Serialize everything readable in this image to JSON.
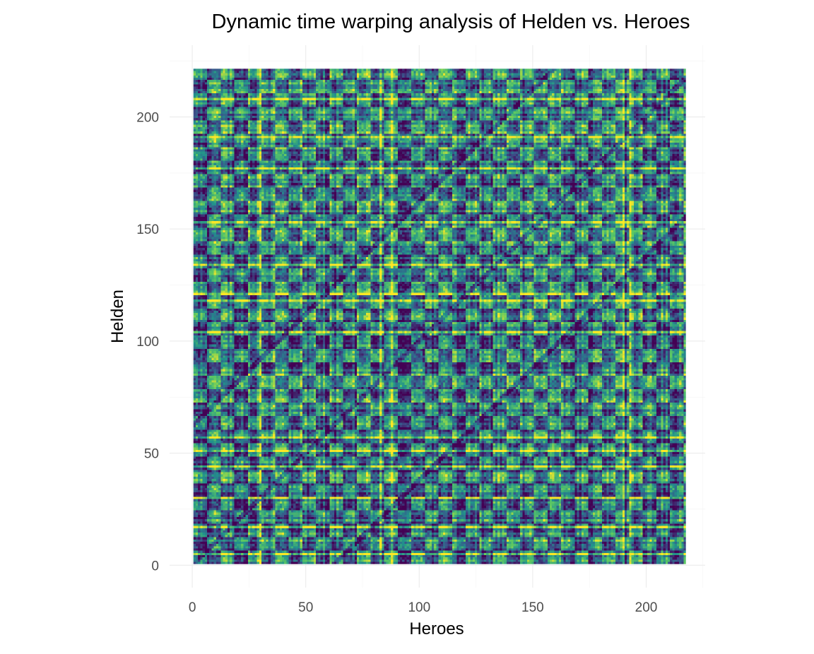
{
  "chart_data": {
    "type": "heatmap",
    "title": "Dynamic time warping analysis of Helden vs. Heroes",
    "xlabel": "Heroes",
    "ylabel": "Helden",
    "x_range": [
      1,
      217
    ],
    "y_range": [
      1,
      221
    ],
    "xlim": [
      -10,
      226
    ],
    "ylim": [
      -10,
      232
    ],
    "x_ticks": [
      0,
      50,
      100,
      150,
      200
    ],
    "y_ticks": [
      0,
      50,
      100,
      150,
      200
    ],
    "colorscale": "viridis",
    "colors": [
      "#440154",
      "#3b528b",
      "#21918c",
      "#5ec962",
      "#fde725"
    ],
    "value_range": [
      0,
      1
    ],
    "grid": true,
    "legend": "none",
    "theme": "minimal"
  }
}
